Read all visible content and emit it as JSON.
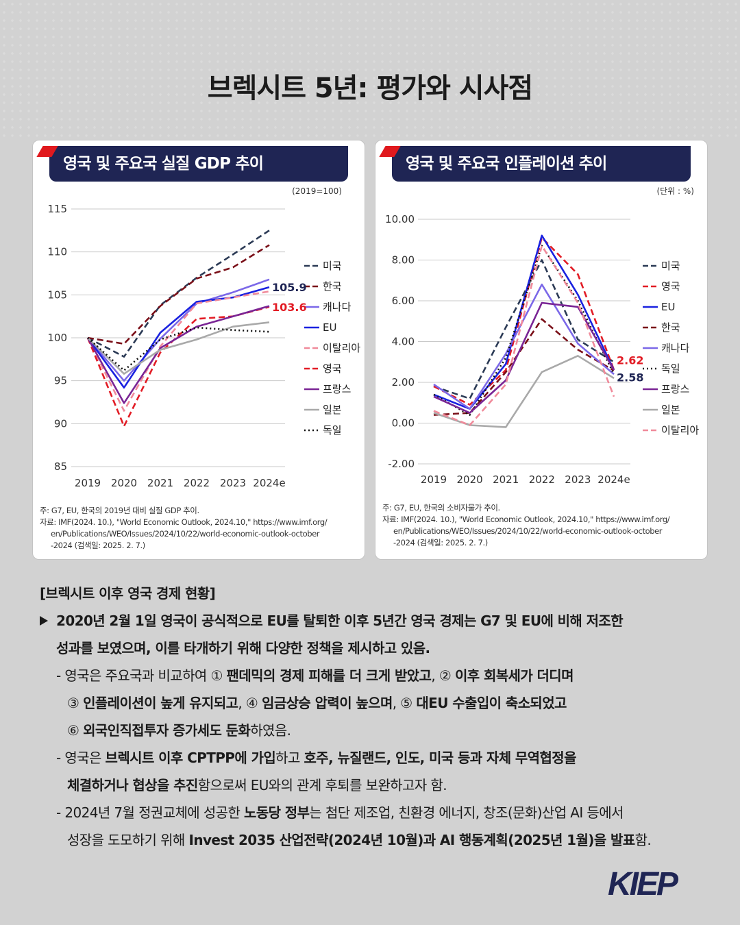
{
  "title": "브렉시트 5년: 평가와 시사점",
  "gdp_panel": {
    "title": "영국 및 주요국 실질 GDP 추이",
    "unit": "(2019=100)",
    "note_lines": [
      "주: G7, EU, 한국의 2019년 대비 실질 GDP 추이.",
      "자료: IMF(2024. 10.), \"World Economic Outlook, 2024.10,\" https://www.imf.org/",
      "en/Publications/WEO/Issues/2024/10/22/world-economic-outlook-october",
      "-2024 (검색일: 2025. 2. 7.)"
    ]
  },
  "inflation_panel": {
    "title": "영국 및 주요국 인플레이션 추이",
    "unit": "(단위 : %)",
    "note_lines": [
      "주: G7, EU, 한국의 소비자물가 추이.",
      "자료: IMF(2024. 10.), \"World Economic Outlook, 2024.10,\" https://www.imf.org/",
      "en/Publications/WEO/Issues/2024/10/22/world-economic-outlook-october",
      "-2024 (검색일: 2025. 2. 7.)"
    ]
  },
  "chart_data": [
    {
      "type": "line",
      "title": "영국 및 주요국 실질 GDP 추이",
      "categories": [
        "2019",
        "2020",
        "2021",
        "2022",
        "2023",
        "2024e"
      ],
      "ylim": [
        85,
        115
      ],
      "yticks": [
        "115",
        "110",
        "105",
        "100",
        "95",
        "90",
        "85"
      ],
      "series": [
        {
          "name": "미국",
          "color": "#2b3a55",
          "dash": "dashed",
          "values": [
            100,
            97.8,
            103.8,
            107.0,
            109.7,
            112.5
          ]
        },
        {
          "name": "한국",
          "color": "#7a0f18",
          "dash": "dashed",
          "values": [
            100,
            99.3,
            103.7,
            106.9,
            108.2,
            110.8
          ]
        },
        {
          "name": "캐나다",
          "color": "#7b68e8",
          "dash": "solid",
          "values": [
            100,
            95.0,
            99.9,
            104.0,
            105.3,
            106.8
          ]
        },
        {
          "name": "EU",
          "color": "#1a22e0",
          "dash": "solid",
          "values": [
            100,
            94.2,
            100.6,
            104.2,
            104.7,
            105.9
          ]
        },
        {
          "name": "이탈리아",
          "color": "#f08a9a",
          "dash": "dashed",
          "values": [
            100,
            91.5,
            99.0,
            104.0,
            104.7,
            105.4
          ]
        },
        {
          "name": "영국",
          "color": "#e21c25",
          "dash": "dashed",
          "values": [
            100,
            89.7,
            98.3,
            102.2,
            102.5,
            103.6
          ]
        },
        {
          "name": "프랑스",
          "color": "#7a2595",
          "dash": "solid",
          "values": [
            100,
            92.4,
            98.8,
            101.3,
            102.5,
            103.7
          ]
        },
        {
          "name": "일본",
          "color": "#a9a9a9",
          "dash": "solid",
          "values": [
            100,
            95.8,
            98.6,
            99.8,
            101.3,
            101.8
          ]
        },
        {
          "name": "독일",
          "color": "#111111",
          "dash": "dotted",
          "values": [
            100,
            96.2,
            99.8,
            101.2,
            100.9,
            100.7
          ]
        }
      ],
      "labels": [
        {
          "text": "105.9",
          "series": "EU",
          "color": "#1f2554"
        },
        {
          "text": "103.6",
          "series": "영국",
          "color": "#e21c25"
        }
      ]
    },
    {
      "type": "line",
      "title": "영국 및 주요국 인플레이션 추이",
      "categories": [
        "2019",
        "2020",
        "2021",
        "2022",
        "2023",
        "2024e"
      ],
      "ylim": [
        -2,
        10
      ],
      "yticks": [
        "10.00",
        "8.00",
        "6.00",
        "4.00",
        "2.00",
        "0.00",
        "-2.00"
      ],
      "series": [
        {
          "name": "미국",
          "color": "#2b3a55",
          "dash": "dashed",
          "values": [
            1.8,
            1.2,
            4.7,
            8.0,
            4.1,
            3.0
          ]
        },
        {
          "name": "영국",
          "color": "#e21c25",
          "dash": "dashed",
          "values": [
            1.8,
            0.9,
            2.6,
            9.1,
            7.3,
            2.62
          ]
        },
        {
          "name": "EU",
          "color": "#1a22e0",
          "dash": "solid",
          "values": [
            1.4,
            0.7,
            2.9,
            9.2,
            6.3,
            2.6
          ]
        },
        {
          "name": "한국",
          "color": "#7a0f18",
          "dash": "dashed",
          "values": [
            0.4,
            0.5,
            2.5,
            5.1,
            3.6,
            2.58
          ]
        },
        {
          "name": "캐나다",
          "color": "#7b68e8",
          "dash": "solid",
          "values": [
            1.9,
            0.7,
            3.4,
            6.8,
            3.9,
            2.4
          ]
        },
        {
          "name": "독일",
          "color": "#111111",
          "dash": "dotted",
          "values": [
            1.4,
            0.4,
            3.2,
            8.7,
            6.0,
            2.4
          ]
        },
        {
          "name": "프랑스",
          "color": "#7a2595",
          "dash": "solid",
          "values": [
            1.3,
            0.5,
            2.1,
            5.9,
            5.7,
            2.6
          ]
        },
        {
          "name": "일본",
          "color": "#a9a9a9",
          "dash": "solid",
          "values": [
            0.5,
            -0.1,
            -0.2,
            2.5,
            3.3,
            2.2
          ]
        },
        {
          "name": "이탈리아",
          "color": "#f08a9a",
          "dash": "dashed",
          "values": [
            0.6,
            -0.1,
            1.9,
            8.7,
            5.9,
            1.3
          ]
        }
      ],
      "labels": [
        {
          "text": "2.62",
          "series": "영국",
          "color": "#e21c25"
        },
        {
          "text": "2.58",
          "series": "한국",
          "color": "#1f2554"
        }
      ]
    }
  ],
  "body": {
    "section_title": "[브렉시트 이후 영국 경제 현황]",
    "main_bullet_1": "2020년 2월 1일 영국이 공식적으로 EU를 탈퇴한 이후 5년간 영국 경제는 G7 및 EU에 비해 저조한",
    "main_bullet_2": "성과를 보였으며, 이를 타개하기 위해 다양한 정책을 제시하고 있음.",
    "s1_a": "- 영국은 주요국과 비교하여 ① ",
    "s1_b": "팬데믹의 경제 피해를 더 크게 받았고",
    "s1_c": ", ② ",
    "s1_d": "이후 회복세가 더디며",
    "s1_e": "③ ",
    "s1_f": "인플레이션이 높게 유지되고",
    "s1_g": ", ④ ",
    "s1_h": "임금상승 압력이 높으며",
    "s1_i": ", ⑤ ",
    "s1_j": "대EU 수출입이 축소되었고",
    "s1_k": "⑥ ",
    "s1_l": "외국인직접투자 증가세도 둔화",
    "s1_m": "하였음.",
    "s2_a": "- 영국은 ",
    "s2_b": "브렉시트 이후 CPTPP에 가입",
    "s2_c": "하고 ",
    "s2_d": "호주, 뉴질랜드, 인도, 미국 등과 자체 무역협정을",
    "s2_e": "체결하거나 협상을 추진",
    "s2_f": "함으로써 EU와의 관계 후퇴를 보완하고자 함.",
    "s3_a": "- 2024년 7월 정권교체에 성공한 ",
    "s3_b": "노동당 정부",
    "s3_c": "는 첨단 제조업, 친환경 에너지, 창조(문화)산업 AI 등에서",
    "s3_d": "성장을 도모하기 위해 ",
    "s3_e": "Invest 2035 산업전략(2024년 10월)과 AI 행동계획(2025년 1월)을 발표",
    "s3_f": "함."
  },
  "logo": {
    "text": "KIEP",
    "color": "#1f2554",
    "accent": "#e21c25"
  }
}
